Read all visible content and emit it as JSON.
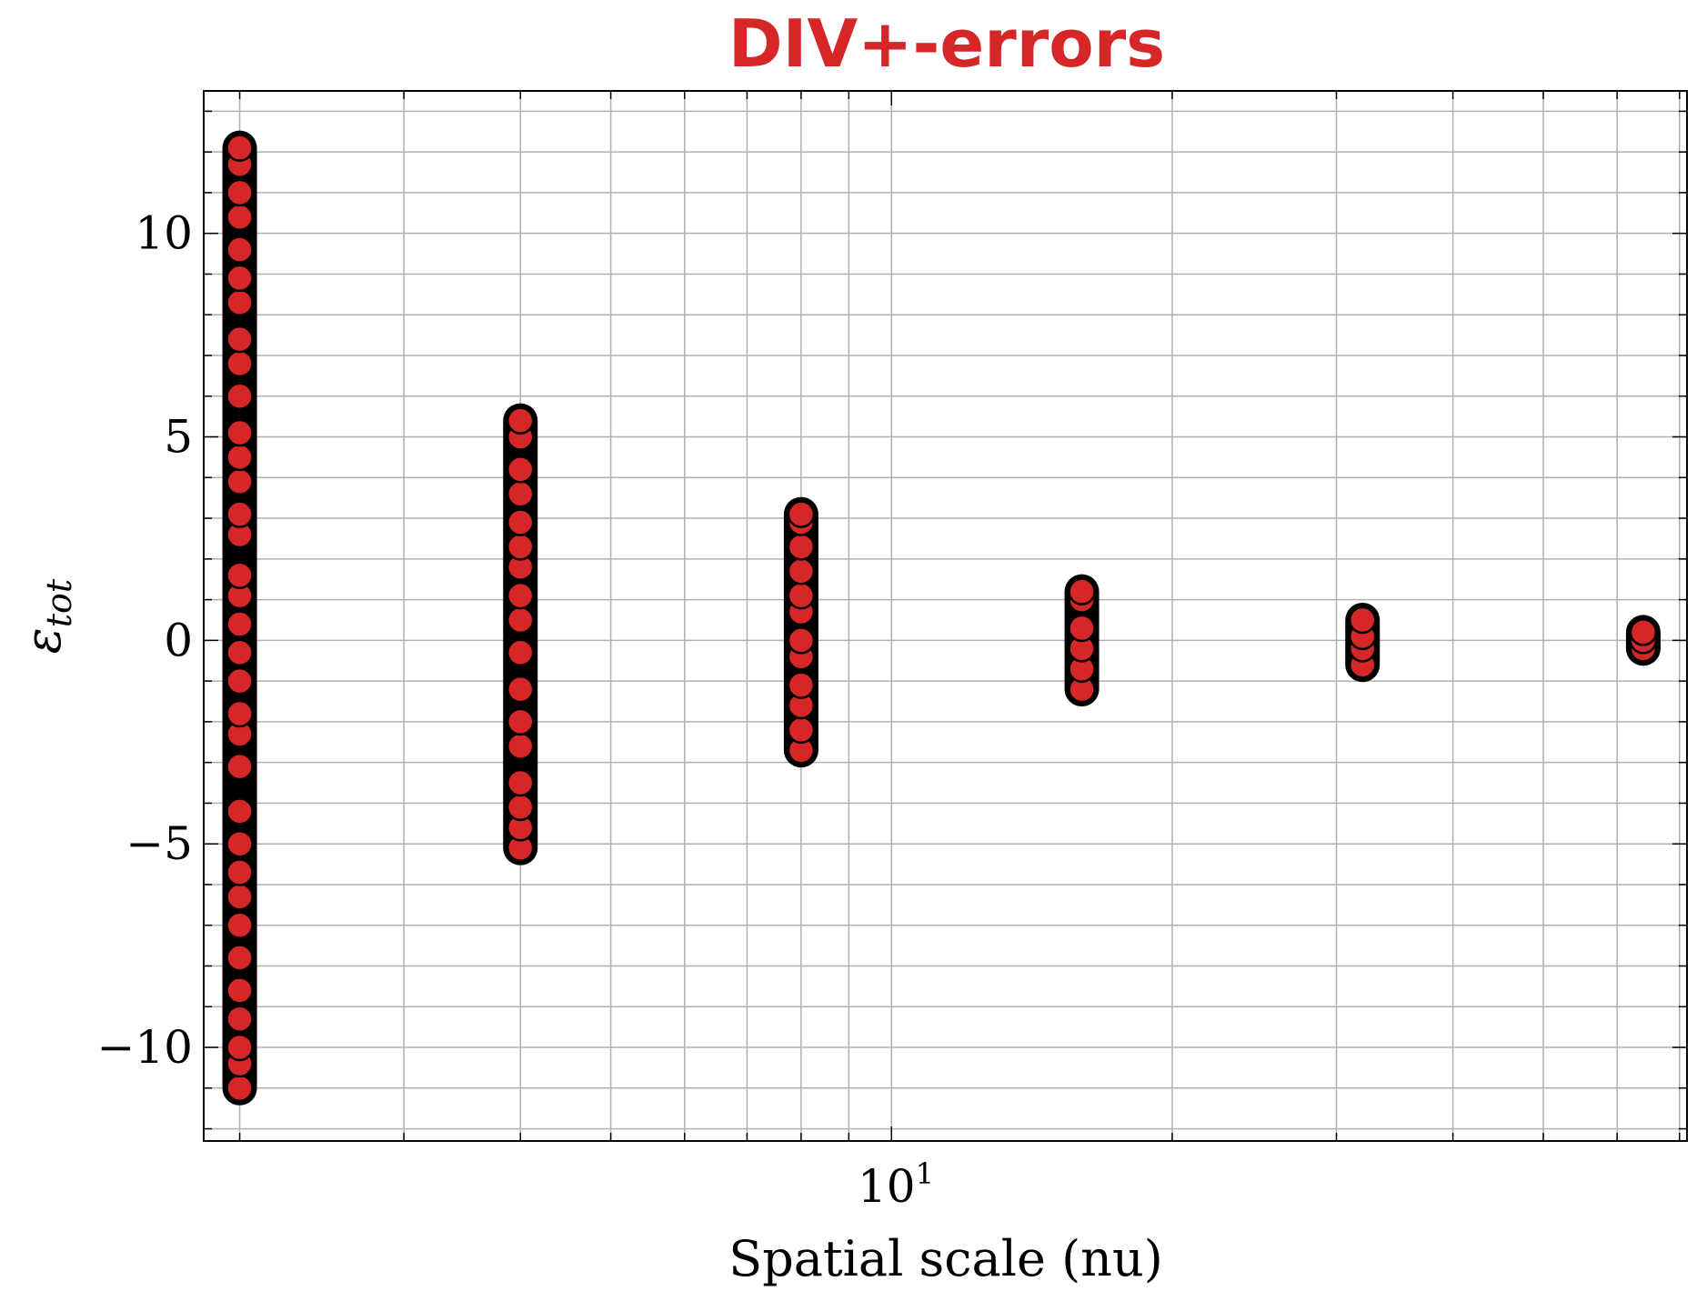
{
  "chart_data": {
    "type": "scatter",
    "title": "DIV+-errors",
    "xlabel": "Spatial scale (nu)",
    "ylabel": "ε",
    "ylabel_sub": "tot",
    "x_scale": "log",
    "x_major_tick": {
      "base": "10",
      "exponent": "1"
    },
    "y_ticks": [
      10,
      5,
      0,
      -5,
      -10
    ],
    "y_tick_labels": [
      "10",
      "5",
      "0",
      "−5",
      "−10"
    ],
    "xlim": [
      1.83,
      71.3
    ],
    "ylim": [
      -12.3,
      13.5
    ],
    "grid": true,
    "marker_fill": "#d62728",
    "marker_edge": "#000000",
    "series": [
      {
        "points": [
          {
            "x": 2,
            "y": -11.0
          },
          {
            "x": 2,
            "y": -10.4
          },
          {
            "x": 2,
            "y": -10.0
          },
          {
            "x": 2,
            "y": -9.3
          },
          {
            "x": 2,
            "y": -8.6
          },
          {
            "x": 2,
            "y": -7.8
          },
          {
            "x": 2,
            "y": -7.0
          },
          {
            "x": 2,
            "y": -6.3
          },
          {
            "x": 2,
            "y": -5.7
          },
          {
            "x": 2,
            "y": -5.0
          },
          {
            "x": 2,
            "y": -4.2
          },
          {
            "x": 2,
            "y": -3.1
          },
          {
            "x": 2,
            "y": -2.3
          },
          {
            "x": 2,
            "y": -1.8
          },
          {
            "x": 2,
            "y": -1.0
          },
          {
            "x": 2,
            "y": -0.3
          },
          {
            "x": 2,
            "y": 0.4
          },
          {
            "x": 2,
            "y": 1.1
          },
          {
            "x": 2,
            "y": 1.6
          },
          {
            "x": 2,
            "y": 2.6
          },
          {
            "x": 2,
            "y": 3.1
          },
          {
            "x": 2,
            "y": 3.9
          },
          {
            "x": 2,
            "y": 4.5
          },
          {
            "x": 2,
            "y": 5.1
          },
          {
            "x": 2,
            "y": 6.0
          },
          {
            "x": 2,
            "y": 6.8
          },
          {
            "x": 2,
            "y": 7.4
          },
          {
            "x": 2,
            "y": 8.3
          },
          {
            "x": 2,
            "y": 8.9
          },
          {
            "x": 2,
            "y": 9.6
          },
          {
            "x": 2,
            "y": 10.4
          },
          {
            "x": 2,
            "y": 11.0
          },
          {
            "x": 2,
            "y": 11.7
          },
          {
            "x": 2,
            "y": 12.1
          },
          {
            "x": 4,
            "y": -5.1
          },
          {
            "x": 4,
            "y": -4.6
          },
          {
            "x": 4,
            "y": -4.1
          },
          {
            "x": 4,
            "y": -3.5
          },
          {
            "x": 4,
            "y": -2.6
          },
          {
            "x": 4,
            "y": -2.0
          },
          {
            "x": 4,
            "y": -1.2
          },
          {
            "x": 4,
            "y": -0.3
          },
          {
            "x": 4,
            "y": 0.5
          },
          {
            "x": 4,
            "y": 1.1
          },
          {
            "x": 4,
            "y": 1.8
          },
          {
            "x": 4,
            "y": 2.3
          },
          {
            "x": 4,
            "y": 2.9
          },
          {
            "x": 4,
            "y": 3.6
          },
          {
            "x": 4,
            "y": 4.2
          },
          {
            "x": 4,
            "y": 5.0
          },
          {
            "x": 4,
            "y": 5.4
          },
          {
            "x": 8,
            "y": -2.7
          },
          {
            "x": 8,
            "y": -2.2
          },
          {
            "x": 8,
            "y": -1.6
          },
          {
            "x": 8,
            "y": -1.1
          },
          {
            "x": 8,
            "y": -0.4
          },
          {
            "x": 8,
            "y": 0.0
          },
          {
            "x": 8,
            "y": 0.7
          },
          {
            "x": 8,
            "y": 1.1
          },
          {
            "x": 8,
            "y": 1.7
          },
          {
            "x": 8,
            "y": 2.3
          },
          {
            "x": 8,
            "y": 2.9
          },
          {
            "x": 8,
            "y": 3.1
          },
          {
            "x": 16,
            "y": -1.2
          },
          {
            "x": 16,
            "y": -0.7
          },
          {
            "x": 16,
            "y": -0.2
          },
          {
            "x": 16,
            "y": 0.3
          },
          {
            "x": 16,
            "y": 1.0
          },
          {
            "x": 16,
            "y": 1.2
          },
          {
            "x": 32,
            "y": -0.6
          },
          {
            "x": 32,
            "y": -0.2
          },
          {
            "x": 32,
            "y": 0.1
          },
          {
            "x": 32,
            "y": 0.5
          },
          {
            "x": 64,
            "y": -0.2
          },
          {
            "x": 64,
            "y": 0.0
          },
          {
            "x": 64,
            "y": 0.2
          }
        ]
      }
    ]
  }
}
